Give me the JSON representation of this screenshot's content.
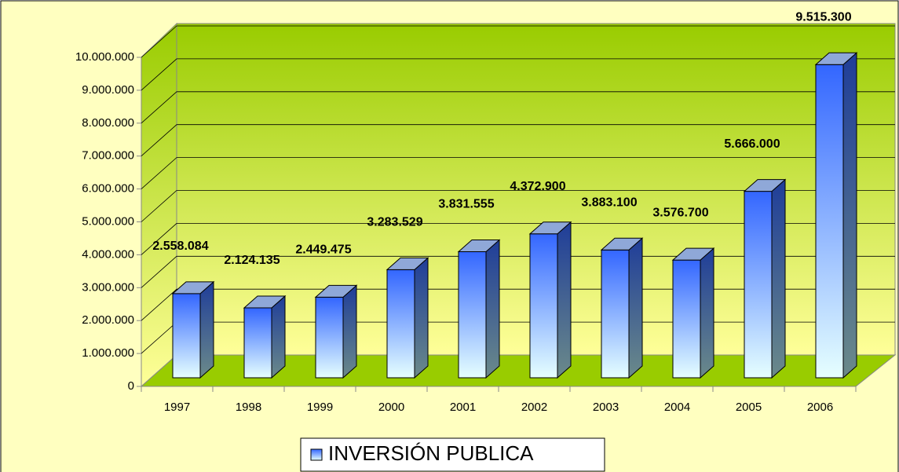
{
  "chart_data": {
    "type": "bar",
    "categories": [
      "1997",
      "1998",
      "1999",
      "2000",
      "2001",
      "2002",
      "2003",
      "2004",
      "2005",
      "2006"
    ],
    "series": [
      {
        "name": "INVERSIÓN PUBLICA",
        "color": "#3366ff",
        "values": [
          2558084,
          2124135,
          2449475,
          3283529,
          3831555,
          4372900,
          3883100,
          3576700,
          5666000,
          9515300
        ],
        "value_labels": [
          "2.558.084",
          "2.124.135",
          "2.449.475",
          "3.283.529",
          "3.831.555",
          "4.372.900",
          "3.883.100",
          "3.576.700",
          "5.666.000",
          "9.515.300"
        ]
      }
    ],
    "ylim": [
      0,
      10000000
    ],
    "yticks": [
      0,
      {
        "value": 1000000,
        "label": "1.000.000"
      },
      {
        "value": 2000000,
        "label": "2.000.000"
      },
      {
        "value": 3000000,
        "label": "3.000.000"
      },
      {
        "value": 4000000,
        "label": "4.000.000"
      },
      {
        "value": 5000000,
        "label": "5.000.000"
      },
      {
        "value": 6000000,
        "label": "6.000.000"
      },
      {
        "value": 7000000,
        "label": "7.000.000"
      },
      {
        "value": 8000000,
        "label": "8.000.000"
      },
      {
        "value": 9000000,
        "label": "9.000.000"
      },
      {
        "value": 10000000,
        "label": "10.000.000"
      }
    ],
    "grid": true
  }
}
